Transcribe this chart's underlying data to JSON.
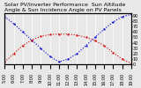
{
  "title": "Solar PV/Inverter Performance  Sun Altitude Angle & Sun Incidence Angle on PV Panels",
  "x": [
    5,
    6,
    7,
    8,
    9,
    10,
    11,
    12,
    13,
    14,
    15,
    16,
    17,
    18,
    19
  ],
  "blue_y": [
    88,
    75,
    60,
    45,
    30,
    15,
    5,
    10,
    20,
    35,
    50,
    65,
    78,
    88,
    92
  ],
  "red_y": [
    5,
    20,
    35,
    45,
    52,
    55,
    56,
    56,
    54,
    50,
    44,
    35,
    22,
    10,
    2
  ],
  "blue_color": "#0000cc",
  "red_color": "#cc0000",
  "ylim": [
    0,
    95
  ],
  "xlim": [
    5,
    19
  ],
  "right_yticks": [
    0,
    10,
    20,
    30,
    40,
    50,
    60,
    70,
    80,
    90
  ],
  "background_color": "#e8e8e8",
  "grid_color": "#ffffff",
  "title_fontsize": 4.5,
  "tick_fontsize": 3.5
}
